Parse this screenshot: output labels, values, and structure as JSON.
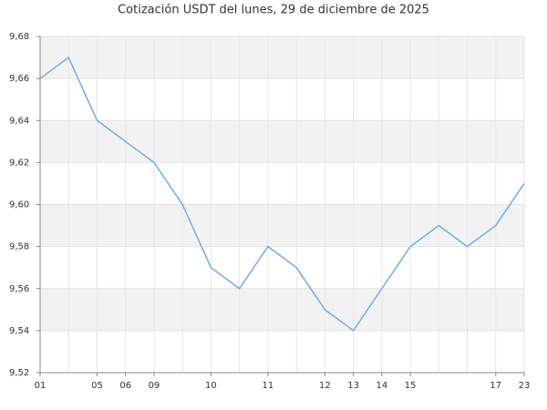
{
  "chart_data": {
    "type": "line",
    "title": "Cotización USDT del lunes, 29 de diciembre de 2025",
    "categories": [
      "01",
      null,
      "05",
      "06",
      "09",
      null,
      "10",
      null,
      "11",
      null,
      "12",
      "13",
      "14",
      "15",
      null,
      null,
      "17",
      "23"
    ],
    "series": [
      {
        "name": "USDT",
        "color": "#6aaef0",
        "values": [
          9.66,
          9.67,
          9.64,
          9.63,
          9.62,
          9.6,
          9.57,
          9.56,
          9.58,
          9.57,
          9.55,
          9.54,
          9.56,
          9.58,
          9.59,
          9.58,
          9.59,
          9.61
        ]
      }
    ],
    "ylim": [
      9.52,
      9.68
    ],
    "yticks": [
      {
        "value": 9.52,
        "label": "9,52"
      },
      {
        "value": 9.54,
        "label": "9,54"
      },
      {
        "value": 9.56,
        "label": "9,56"
      },
      {
        "value": 9.58,
        "label": "9,58"
      },
      {
        "value": 9.6,
        "label": "9,60"
      },
      {
        "value": 9.62,
        "label": "9,62"
      },
      {
        "value": 9.64,
        "label": "9,64"
      },
      {
        "value": 9.66,
        "label": "9,66"
      },
      {
        "value": 9.68,
        "label": "9,68"
      }
    ],
    "grid": true
  }
}
